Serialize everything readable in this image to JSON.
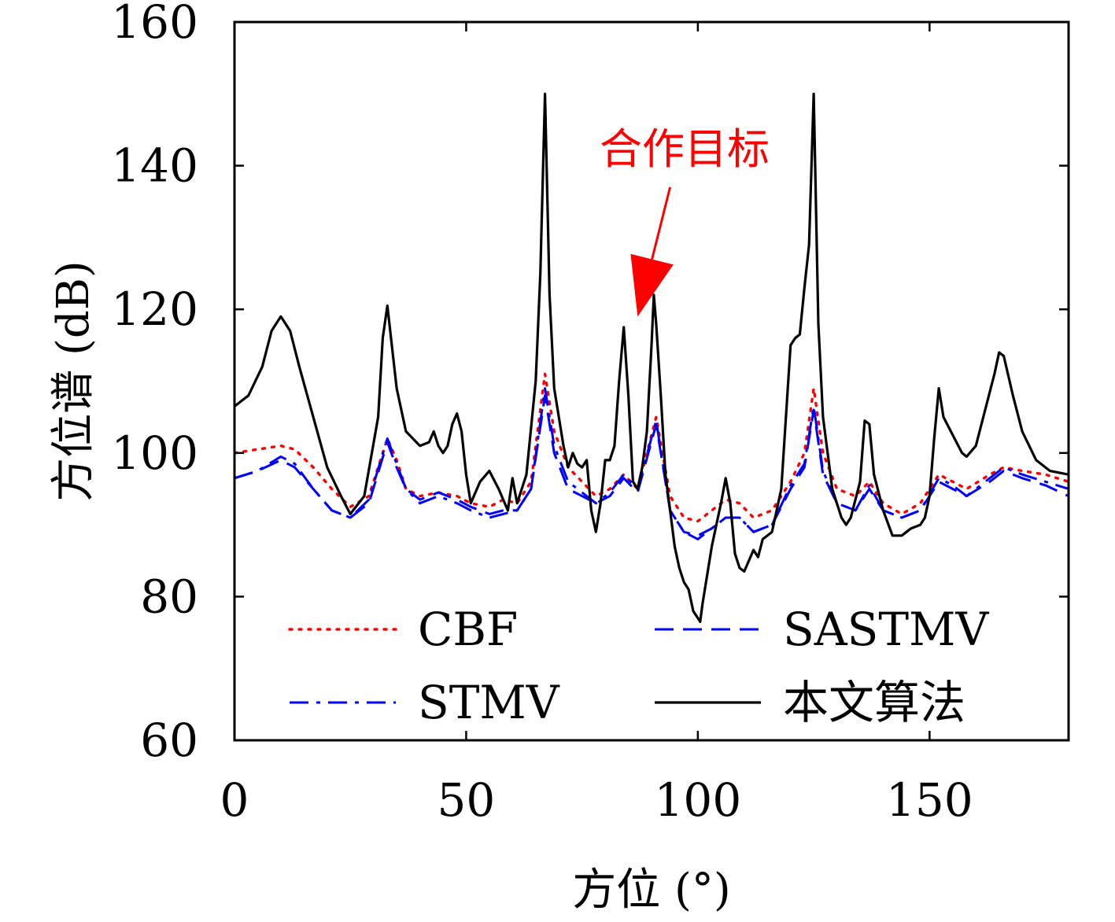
{
  "chart_data": {
    "type": "line",
    "xlabel": "方位 (°)",
    "ylabel": "方位谱 (dB)",
    "xlim": [
      0,
      180
    ],
    "ylim": [
      60,
      160
    ],
    "xticks": [
      0,
      50,
      100,
      150
    ],
    "yticks": [
      60,
      80,
      100,
      120,
      140,
      160
    ],
    "grid": false,
    "legend_placement": "bottom",
    "annotation": {
      "text": "合作目标",
      "color": "#ff0000",
      "from": [
        94,
        137
      ],
      "to": [
        87,
        119
      ]
    },
    "series": [
      {
        "name": "CBF",
        "color": "#ff0000",
        "style": "dotted",
        "points": [
          [
            0,
            100
          ],
          [
            5,
            100.5
          ],
          [
            10,
            101
          ],
          [
            13,
            100.5
          ],
          [
            17,
            98
          ],
          [
            21,
            95
          ],
          [
            25,
            92.5
          ],
          [
            29,
            94
          ],
          [
            33,
            102
          ],
          [
            35,
            99
          ],
          [
            37,
            95
          ],
          [
            40,
            94
          ],
          [
            44,
            94.5
          ],
          [
            48,
            94
          ],
          [
            51,
            93
          ],
          [
            55,
            92.5
          ],
          [
            58,
            93.5
          ],
          [
            61,
            93
          ],
          [
            64,
            96
          ],
          [
            67,
            111
          ],
          [
            69,
            103
          ],
          [
            72,
            98
          ],
          [
            75,
            96
          ],
          [
            78,
            94
          ],
          [
            81,
            95
          ],
          [
            84,
            97
          ],
          [
            87,
            95
          ],
          [
            91,
            105
          ],
          [
            94,
            94
          ],
          [
            97,
            91
          ],
          [
            100,
            90.5
          ],
          [
            103,
            92
          ],
          [
            106,
            93.5
          ],
          [
            109,
            93
          ],
          [
            112,
            91
          ],
          [
            116,
            92
          ],
          [
            120,
            96
          ],
          [
            123,
            100
          ],
          [
            125,
            109
          ],
          [
            127,
            100
          ],
          [
            130,
            95
          ],
          [
            134,
            94
          ],
          [
            137,
            96
          ],
          [
            140,
            93
          ],
          [
            144,
            91.5
          ],
          [
            148,
            93
          ],
          [
            152,
            97
          ],
          [
            155,
            96
          ],
          [
            158,
            95
          ],
          [
            163,
            97
          ],
          [
            166,
            98
          ],
          [
            170,
            97.5
          ],
          [
            175,
            97
          ],
          [
            180,
            96
          ]
        ]
      },
      {
        "name": "SASTMV",
        "color": "#0000ff",
        "style": "dashed",
        "points": [
          [
            0,
            96.5
          ],
          [
            5,
            97.5
          ],
          [
            10,
            99
          ],
          [
            13,
            98
          ],
          [
            17,
            95
          ],
          [
            21,
            92
          ],
          [
            25,
            91
          ],
          [
            29,
            93
          ],
          [
            33,
            101.5
          ],
          [
            35,
            98
          ],
          [
            37,
            95
          ],
          [
            40,
            93.5
          ],
          [
            44,
            94.5
          ],
          [
            48,
            93.5
          ],
          [
            51,
            92.5
          ],
          [
            55,
            91.5
          ],
          [
            58,
            92
          ],
          [
            61,
            92
          ],
          [
            64,
            95
          ],
          [
            67,
            108
          ],
          [
            69,
            100
          ],
          [
            72,
            95
          ],
          [
            75,
            94
          ],
          [
            78,
            93
          ],
          [
            81,
            94
          ],
          [
            84,
            96.5
          ],
          [
            87,
            94.5
          ],
          [
            91,
            104
          ],
          [
            94,
            92
          ],
          [
            97,
            89
          ],
          [
            100,
            88.5
          ],
          [
            103,
            89.5
          ],
          [
            106,
            91
          ],
          [
            109,
            91
          ],
          [
            112,
            89
          ],
          [
            116,
            90
          ],
          [
            120,
            95
          ],
          [
            123,
            98
          ],
          [
            125,
            106
          ],
          [
            127,
            97
          ],
          [
            130,
            93
          ],
          [
            134,
            92
          ],
          [
            137,
            95
          ],
          [
            140,
            92
          ],
          [
            144,
            91
          ],
          [
            148,
            92
          ],
          [
            152,
            96
          ],
          [
            155,
            95
          ],
          [
            158,
            94
          ],
          [
            163,
            96
          ],
          [
            166,
            97.5
          ],
          [
            170,
            96.5
          ],
          [
            175,
            95.5
          ],
          [
            180,
            94
          ]
        ]
      },
      {
        "name": "STMV",
        "color": "#0000ff",
        "style": "dashdot",
        "points": [
          [
            0,
            96.5
          ],
          [
            5,
            97.5
          ],
          [
            10,
            99.5
          ],
          [
            13,
            98.5
          ],
          [
            17,
            95
          ],
          [
            21,
            92
          ],
          [
            25,
            91
          ],
          [
            29,
            93.5
          ],
          [
            33,
            102
          ],
          [
            35,
            98.5
          ],
          [
            37,
            95
          ],
          [
            40,
            93
          ],
          [
            44,
            94
          ],
          [
            48,
            93
          ],
          [
            51,
            92
          ],
          [
            55,
            91
          ],
          [
            58,
            91.5
          ],
          [
            61,
            92
          ],
          [
            64,
            95
          ],
          [
            67,
            109
          ],
          [
            69,
            101
          ],
          [
            72,
            96
          ],
          [
            75,
            94.5
          ],
          [
            78,
            93
          ],
          [
            81,
            94.5
          ],
          [
            84,
            97
          ],
          [
            87,
            95
          ],
          [
            91,
            104.5
          ],
          [
            94,
            92
          ],
          [
            97,
            89
          ],
          [
            100,
            88
          ],
          [
            103,
            89.5
          ],
          [
            106,
            91
          ],
          [
            109,
            91
          ],
          [
            112,
            89
          ],
          [
            116,
            90
          ],
          [
            120,
            95.5
          ],
          [
            123,
            98.5
          ],
          [
            125,
            106.5
          ],
          [
            127,
            97.5
          ],
          [
            130,
            93
          ],
          [
            134,
            92
          ],
          [
            137,
            95.5
          ],
          [
            140,
            92
          ],
          [
            144,
            91
          ],
          [
            148,
            92
          ],
          [
            152,
            96.5
          ],
          [
            155,
            95.5
          ],
          [
            158,
            94
          ],
          [
            163,
            96.5
          ],
          [
            166,
            98
          ],
          [
            170,
            97
          ],
          [
            175,
            96
          ],
          [
            180,
            95
          ]
        ]
      },
      {
        "name": "本文算法",
        "color": "#000000",
        "style": "solid",
        "points": [
          [
            0,
            106.5
          ],
          [
            3,
            108
          ],
          [
            6,
            112
          ],
          [
            8,
            117
          ],
          [
            10,
            119
          ],
          [
            12,
            117
          ],
          [
            14,
            112
          ],
          [
            17,
            105
          ],
          [
            20,
            98
          ],
          [
            23,
            94
          ],
          [
            25,
            91.5
          ],
          [
            28,
            94
          ],
          [
            31,
            105
          ],
          [
            32,
            116
          ],
          [
            33,
            120.5
          ],
          [
            35,
            109
          ],
          [
            37,
            103
          ],
          [
            40,
            101
          ],
          [
            42,
            101.5
          ],
          [
            43,
            103
          ],
          [
            44,
            101
          ],
          [
            45,
            100
          ],
          [
            46,
            101
          ],
          [
            47,
            104
          ],
          [
            48,
            105.5
          ],
          [
            49,
            103
          ],
          [
            50,
            97
          ],
          [
            51,
            93
          ],
          [
            53,
            96
          ],
          [
            55,
            97.5
          ],
          [
            57,
            95
          ],
          [
            59,
            92
          ],
          [
            60,
            96.5
          ],
          [
            61,
            93
          ],
          [
            63,
            97
          ],
          [
            65,
            110
          ],
          [
            66,
            125
          ],
          [
            67,
            150
          ],
          [
            68,
            122
          ],
          [
            69,
            109
          ],
          [
            71,
            101
          ],
          [
            72,
            98
          ],
          [
            73,
            100
          ],
          [
            74,
            98.5
          ],
          [
            75,
            98
          ],
          [
            76,
            99
          ],
          [
            77,
            92
          ],
          [
            78,
            89
          ],
          [
            79,
            93
          ],
          [
            80,
            99
          ],
          [
            81,
            99
          ],
          [
            82,
            101
          ],
          [
            83,
            110
          ],
          [
            84,
            117.5
          ],
          [
            85,
            108
          ],
          [
            86,
            96
          ],
          [
            87,
            95
          ],
          [
            88,
            98
          ],
          [
            89,
            103
          ],
          [
            90,
            115
          ],
          [
            90.5,
            122
          ],
          [
            91,
            118
          ],
          [
            92,
            108
          ],
          [
            93,
            97
          ],
          [
            94,
            92
          ],
          [
            95,
            87
          ],
          [
            96,
            84
          ],
          [
            97,
            82
          ],
          [
            98,
            81
          ],
          [
            99,
            78
          ],
          [
            100,
            77
          ],
          [
            100.5,
            76.5
          ],
          [
            101,
            79
          ],
          [
            102,
            83
          ],
          [
            103,
            87
          ],
          [
            104,
            90
          ],
          [
            105,
            93
          ],
          [
            106,
            96.5
          ],
          [
            107,
            93
          ],
          [
            108,
            86
          ],
          [
            109,
            84
          ],
          [
            110,
            83.5
          ],
          [
            111,
            85
          ],
          [
            112,
            86.5
          ],
          [
            113,
            85.5
          ],
          [
            114,
            88
          ],
          [
            116,
            89
          ],
          [
            118,
            95
          ],
          [
            119,
            105
          ],
          [
            120,
            115
          ],
          [
            121,
            116
          ],
          [
            122,
            116.5
          ],
          [
            123,
            123
          ],
          [
            124,
            129
          ],
          [
            125,
            150
          ],
          [
            126,
            118
          ],
          [
            127,
            105
          ],
          [
            129,
            95
          ],
          [
            131,
            91
          ],
          [
            132,
            90
          ],
          [
            133,
            91
          ],
          [
            135,
            96
          ],
          [
            136,
            104.5
          ],
          [
            137,
            104
          ],
          [
            138,
            97
          ],
          [
            140,
            92
          ],
          [
            142,
            88.5
          ],
          [
            144,
            88.5
          ],
          [
            146,
            89.5
          ],
          [
            148,
            90
          ],
          [
            149,
            91
          ],
          [
            150,
            94
          ],
          [
            151,
            102
          ],
          [
            152,
            109
          ],
          [
            153,
            105
          ],
          [
            155,
            102.5
          ],
          [
            157,
            100
          ],
          [
            158,
            99.5
          ],
          [
            160,
            101
          ],
          [
            162,
            106
          ],
          [
            164,
            111
          ],
          [
            165,
            114
          ],
          [
            166,
            113.5
          ],
          [
            168,
            108
          ],
          [
            170,
            103
          ],
          [
            173,
            99
          ],
          [
            176,
            97.5
          ],
          [
            180,
            97
          ]
        ]
      }
    ]
  }
}
